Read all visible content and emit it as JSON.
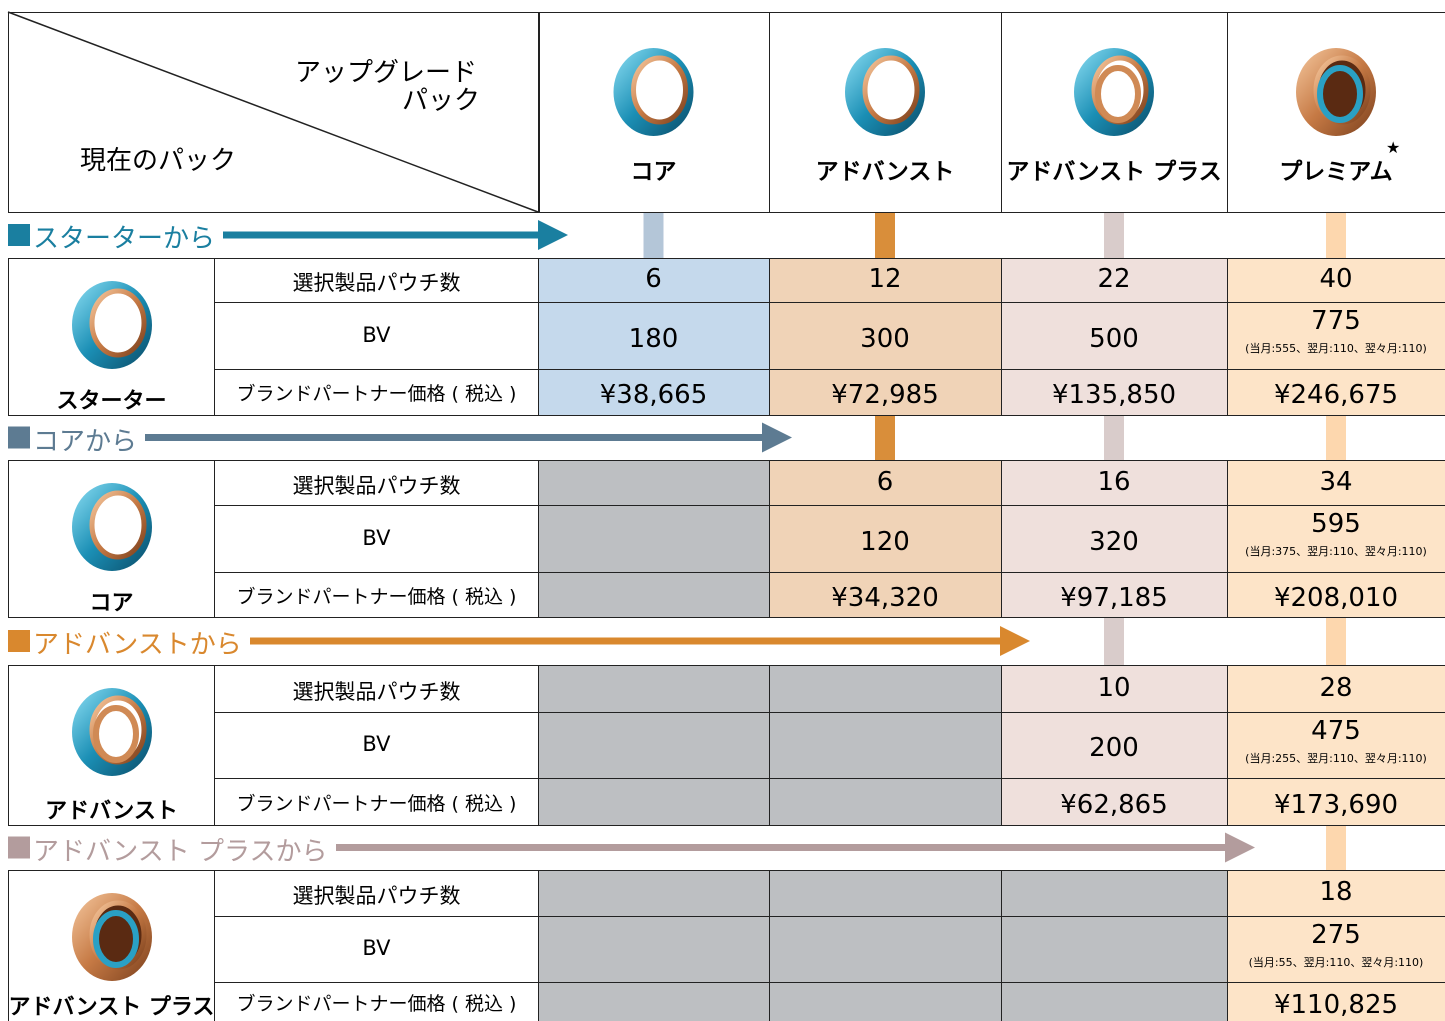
{
  "header": {
    "upgrade_label": [
      "アップグレード",
      "パック"
    ],
    "current_label": "現在のパック",
    "columns": [
      "コア",
      "アドバンスト",
      "アドバンスト プラス",
      "プレミアム"
    ],
    "premium_mark": "★"
  },
  "row_labels": [
    "選択製品パウチ数",
    "BV",
    "ブランドパートナー価格 ( 税込 )"
  ],
  "sections": [
    {
      "title": "スターターから",
      "pack": "スターター",
      "counts": [
        6,
        12,
        22,
        40
      ],
      "bv": [
        180,
        300,
        500,
        775
      ],
      "bv_notes": [
        null,
        null,
        null,
        "(当月:555、翌月:110、翌々月:110)"
      ],
      "prices": [
        "¥38,665",
        "¥72,985",
        "¥135,850",
        "¥246,675"
      ]
    },
    {
      "title": "コアから",
      "pack": "コア",
      "counts": [
        null,
        6,
        16,
        34
      ],
      "bv": [
        null,
        120,
        320,
        595
      ],
      "bv_notes": [
        null,
        null,
        null,
        "(当月:375、翌月:110、翌々月:110)"
      ],
      "prices": [
        null,
        "¥34,320",
        "¥97,185",
        "¥208,010"
      ]
    },
    {
      "title": "アドバンストから",
      "pack": "アドバンスト",
      "counts": [
        null,
        null,
        10,
        28
      ],
      "bv": [
        null,
        null,
        200,
        475
      ],
      "bv_notes": [
        null,
        null,
        null,
        "(当月:255、翌月:110、翌々月:110)"
      ],
      "prices": [
        null,
        null,
        "¥62,865",
        "¥173,690"
      ]
    },
    {
      "title": "アドバンスト プラスから",
      "pack": "アドバンスト プラス",
      "counts": [
        null,
        null,
        null,
        18
      ],
      "bv": [
        null,
        null,
        null,
        275
      ],
      "bv_notes": [
        null,
        null,
        null,
        "(当月:55、翌月:110、翌々月:110)"
      ],
      "prices": [
        null,
        null,
        null,
        "¥110,825"
      ]
    }
  ]
}
